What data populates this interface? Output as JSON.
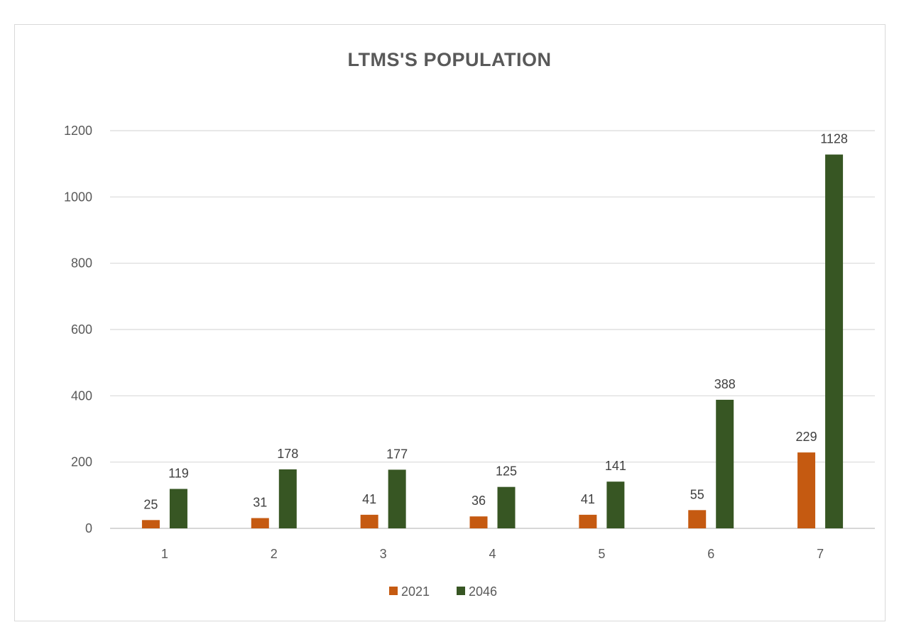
{
  "chart_data": {
    "type": "bar",
    "title": "LTMS'S POPULATION",
    "categories": [
      "1",
      "2",
      "3",
      "4",
      "5",
      "6",
      "7"
    ],
    "series": [
      {
        "name": "2021",
        "color": "#C55A11",
        "values": [
          25,
          31,
          41,
          36,
          41,
          55,
          229
        ]
      },
      {
        "name": "2046",
        "color": "#375623",
        "values": [
          119,
          178,
          177,
          125,
          141,
          388,
          1128
        ]
      }
    ],
    "yticks": [
      0,
      200,
      400,
      600,
      800,
      1000,
      1200
    ],
    "ylim": [
      0,
      1200
    ],
    "grid": true,
    "legend_position": "bottom"
  }
}
